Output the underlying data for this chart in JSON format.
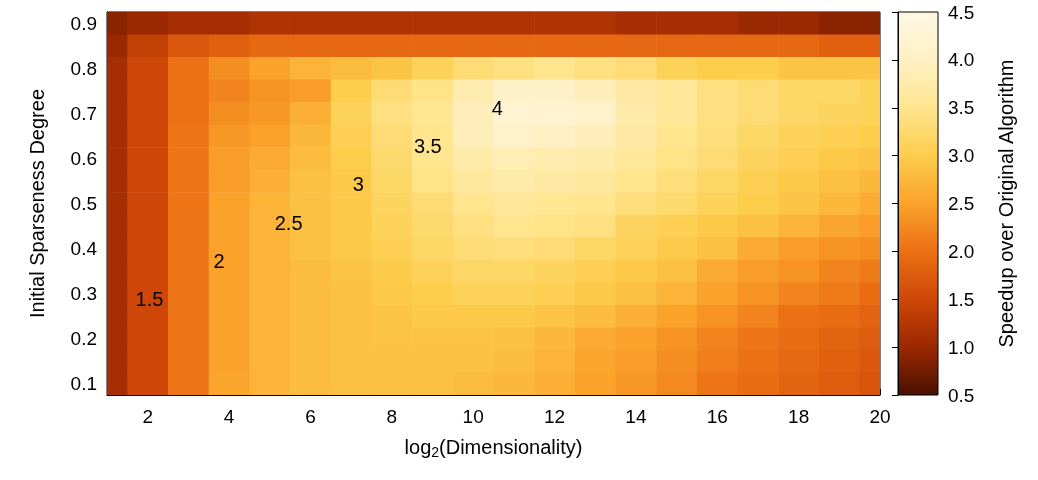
{
  "chart_data": {
    "type": "heatmap",
    "xlabel": "log$_{2}$(Dimensionality)",
    "ylabel": "Initial Sparseness Degree",
    "clabel": "Speedup over Original Algorithm",
    "x": [
      1,
      2,
      3,
      4,
      5,
      6,
      7,
      8,
      9,
      10,
      11,
      12,
      13,
      14,
      15,
      16,
      17,
      18,
      19,
      20
    ],
    "xlim": [
      1,
      20
    ],
    "xticks": [
      2,
      4,
      6,
      8,
      10,
      12,
      14,
      16,
      18,
      20
    ],
    "y_categories": [
      "0.9",
      null,
      "0.8",
      null,
      "0.7",
      null,
      "0.6",
      null,
      "0.5",
      null,
      "0.4",
      null,
      "0.3",
      null,
      "0.2",
      null,
      "0.1"
    ],
    "cells": [
      [
        0.9,
        1.0,
        1.1,
        1.1,
        1.2,
        1.2,
        1.2,
        1.2,
        1.2,
        1.2,
        1.2,
        1.2,
        1.2,
        1.1,
        1.1,
        1.1,
        1.0,
        1.0,
        0.9,
        0.9
      ],
      [
        1.0,
        1.4,
        1.7,
        1.8,
        1.9,
        1.9,
        1.9,
        1.9,
        1.9,
        1.9,
        1.9,
        1.9,
        1.9,
        1.9,
        1.9,
        1.9,
        1.9,
        1.9,
        1.8,
        1.8
      ],
      [
        1.1,
        1.5,
        2.0,
        2.3,
        2.5,
        2.7,
        2.8,
        2.9,
        3.1,
        3.3,
        3.4,
        3.5,
        3.4,
        3.3,
        3.1,
        3.0,
        3.0,
        2.9,
        2.9,
        2.9
      ],
      [
        1.1,
        1.5,
        2.0,
        2.2,
        2.35,
        2.45,
        3.0,
        3.3,
        3.45,
        3.8,
        4.05,
        4.05,
        3.9,
        3.7,
        3.6,
        3.4,
        3.3,
        3.2,
        3.2,
        3.1
      ],
      [
        1.1,
        1.5,
        2.0,
        2.3,
        2.4,
        2.65,
        3.1,
        3.4,
        3.55,
        3.9,
        4.2,
        4.2,
        4.1,
        3.75,
        3.6,
        3.4,
        3.3,
        3.2,
        3.15,
        3.1
      ],
      [
        1.1,
        1.5,
        2.05,
        2.4,
        2.5,
        2.75,
        3.05,
        3.3,
        3.5,
        3.9,
        4.1,
        4.0,
        3.9,
        3.7,
        3.5,
        3.35,
        3.2,
        3.1,
        3.05,
        3.0
      ],
      [
        1.1,
        1.5,
        2.05,
        2.45,
        2.6,
        2.8,
        3.0,
        3.25,
        3.5,
        3.75,
        3.85,
        3.8,
        3.75,
        3.6,
        3.45,
        3.3,
        3.15,
        3.05,
        2.95,
        2.9
      ],
      [
        1.1,
        1.5,
        2.05,
        2.45,
        2.65,
        2.85,
        2.95,
        3.2,
        3.45,
        3.65,
        3.75,
        3.7,
        3.65,
        3.5,
        3.35,
        3.2,
        3.05,
        2.95,
        2.85,
        2.75
      ],
      [
        1.1,
        1.5,
        2.05,
        2.5,
        2.7,
        2.85,
        2.95,
        3.15,
        3.3,
        3.5,
        3.6,
        3.55,
        3.5,
        3.35,
        3.25,
        3.1,
        3.0,
        2.9,
        2.75,
        2.6
      ],
      [
        1.1,
        1.5,
        2.05,
        2.5,
        2.7,
        2.85,
        2.95,
        3.1,
        3.25,
        3.4,
        3.5,
        3.45,
        3.4,
        3.15,
        3.05,
        2.95,
        2.85,
        2.7,
        2.55,
        2.45
      ],
      [
        1.1,
        1.5,
        2.05,
        2.5,
        2.7,
        2.85,
        2.95,
        3.05,
        3.2,
        3.3,
        3.35,
        3.3,
        3.2,
        3.1,
        2.98,
        2.85,
        2.6,
        2.45,
        2.35,
        2.3
      ],
      [
        1.1,
        1.5,
        2.05,
        2.5,
        2.7,
        2.8,
        2.9,
        2.98,
        3.1,
        3.2,
        3.2,
        3.15,
        3.05,
        2.95,
        2.85,
        2.6,
        2.45,
        2.35,
        2.2,
        2.1
      ],
      [
        1.1,
        1.5,
        2.05,
        2.5,
        2.7,
        2.8,
        2.85,
        2.95,
        3.0,
        3.1,
        3.1,
        3.05,
        2.95,
        2.85,
        2.7,
        2.5,
        2.35,
        2.2,
        2.1,
        1.95
      ],
      [
        1.1,
        1.5,
        2.05,
        2.5,
        2.7,
        2.8,
        2.85,
        2.9,
        2.95,
        2.95,
        2.95,
        2.9,
        2.8,
        2.65,
        2.5,
        2.35,
        2.2,
        2.0,
        1.95,
        1.85
      ],
      [
        1.1,
        1.5,
        2.05,
        2.5,
        2.7,
        2.8,
        2.85,
        2.9,
        2.9,
        2.9,
        2.85,
        2.75,
        2.6,
        2.5,
        2.35,
        2.2,
        2.05,
        1.95,
        1.85,
        1.75
      ],
      [
        1.1,
        1.5,
        2.05,
        2.5,
        2.7,
        2.8,
        2.85,
        2.85,
        2.85,
        2.85,
        2.8,
        2.7,
        2.55,
        2.45,
        2.3,
        2.15,
        2.0,
        1.9,
        1.8,
        1.7
      ],
      [
        1.1,
        1.5,
        2.05,
        2.55,
        2.7,
        2.8,
        2.85,
        2.85,
        2.85,
        2.8,
        2.75,
        2.65,
        2.5,
        2.4,
        2.25,
        2.05,
        1.95,
        1.85,
        1.75,
        1.65
      ]
    ],
    "clim": [
      0.5,
      4.5
    ],
    "cticks": [
      0.5,
      {
        "value": 1,
        "label": "1.0"
      },
      1.5,
      {
        "value": 2,
        "label": "2.0"
      },
      2.5,
      {
        "value": 3,
        "label": "3.0"
      },
      3.5,
      {
        "value": 4,
        "label": "4.0"
      },
      4.5
    ],
    "annotations": [
      "1.5",
      "2",
      "2.5",
      "3",
      "3.5",
      "4"
    ]
  }
}
